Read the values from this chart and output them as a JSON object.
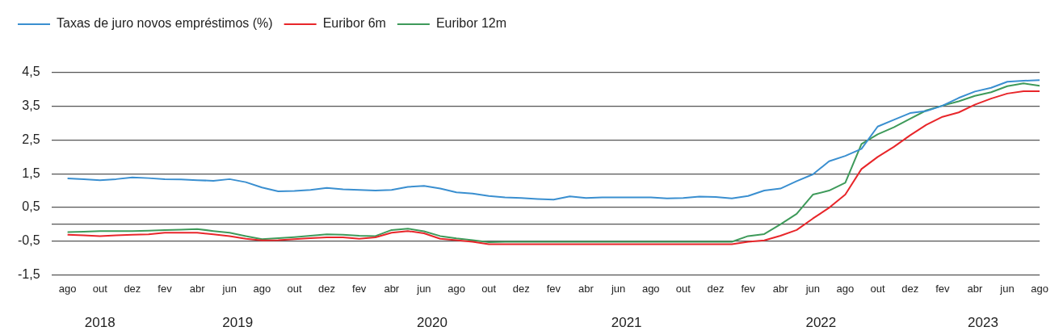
{
  "chart_data": {
    "type": "line",
    "x": [
      "2018-08",
      "2018-09",
      "2018-10",
      "2018-11",
      "2018-12",
      "2019-01",
      "2019-02",
      "2019-03",
      "2019-04",
      "2019-05",
      "2019-06",
      "2019-07",
      "2019-08",
      "2019-09",
      "2019-10",
      "2019-11",
      "2019-12",
      "2020-01",
      "2020-02",
      "2020-03",
      "2020-04",
      "2020-05",
      "2020-06",
      "2020-07",
      "2020-08",
      "2020-09",
      "2020-10",
      "2020-11",
      "2020-12",
      "2021-01",
      "2021-02",
      "2021-03",
      "2021-04",
      "2021-05",
      "2021-06",
      "2021-07",
      "2021-08",
      "2021-09",
      "2021-10",
      "2021-11",
      "2021-12",
      "2022-01",
      "2022-02",
      "2022-03",
      "2022-04",
      "2022-05",
      "2022-06",
      "2022-07",
      "2022-08",
      "2022-09",
      "2022-10",
      "2022-11",
      "2022-12",
      "2023-01",
      "2023-02",
      "2023-03",
      "2023-04",
      "2023-05",
      "2023-06",
      "2023-07",
      "2023-08"
    ],
    "series": [
      {
        "name": "Taxas de juro novos empréstimos (%)",
        "color": "#3a8fd0",
        "values": [
          1.36,
          1.34,
          1.31,
          1.34,
          1.39,
          1.37,
          1.34,
          1.33,
          1.31,
          1.29,
          1.34,
          1.25,
          1.09,
          0.98,
          0.99,
          1.02,
          1.08,
          1.04,
          1.02,
          1.0,
          1.02,
          1.11,
          1.14,
          1.06,
          0.95,
          0.91,
          0.84,
          0.8,
          0.78,
          0.75,
          0.73,
          0.83,
          0.78,
          0.8,
          0.8,
          0.8,
          0.8,
          0.77,
          0.78,
          0.82,
          0.81,
          0.77,
          0.84,
          1.0,
          1.06,
          1.28,
          1.48,
          1.87,
          2.03,
          2.24,
          2.9,
          3.1,
          3.3,
          3.36,
          3.52,
          3.75,
          3.94,
          4.05,
          4.23,
          4.26,
          4.28
        ]
      },
      {
        "name": "Euribor 6m",
        "color": "#e8262a",
        "values": [
          -0.31,
          -0.33,
          -0.35,
          -0.33,
          -0.31,
          -0.3,
          -0.25,
          -0.25,
          -0.25,
          -0.3,
          -0.35,
          -0.43,
          -0.48,
          -0.47,
          -0.44,
          -0.41,
          -0.39,
          -0.39,
          -0.43,
          -0.39,
          -0.25,
          -0.2,
          -0.27,
          -0.43,
          -0.47,
          -0.52,
          -0.59,
          -0.59,
          -0.59,
          -0.59,
          -0.59,
          -0.59,
          -0.59,
          -0.59,
          -0.59,
          -0.59,
          -0.59,
          -0.59,
          -0.59,
          -0.59,
          -0.59,
          -0.59,
          -0.52,
          -0.48,
          -0.34,
          -0.17,
          0.17,
          0.49,
          0.88,
          1.64,
          2.0,
          2.3,
          2.64,
          2.95,
          3.19,
          3.32,
          3.55,
          3.73,
          3.88,
          3.95,
          3.95
        ]
      },
      {
        "name": "Euribor 12m",
        "color": "#3e9a5a",
        "values": [
          -0.23,
          -0.22,
          -0.2,
          -0.2,
          -0.2,
          -0.19,
          -0.17,
          -0.16,
          -0.14,
          -0.2,
          -0.25,
          -0.35,
          -0.44,
          -0.41,
          -0.38,
          -0.34,
          -0.3,
          -0.31,
          -0.34,
          -0.35,
          -0.17,
          -0.13,
          -0.21,
          -0.35,
          -0.42,
          -0.47,
          -0.53,
          -0.52,
          -0.52,
          -0.52,
          -0.52,
          -0.52,
          -0.52,
          -0.52,
          -0.52,
          -0.52,
          -0.52,
          -0.52,
          -0.52,
          -0.52,
          -0.52,
          -0.52,
          -0.35,
          -0.29,
          0.0,
          0.31,
          0.88,
          1.0,
          1.23,
          2.38,
          2.67,
          2.88,
          3.13,
          3.38,
          3.52,
          3.65,
          3.81,
          3.92,
          4.1,
          4.18,
          4.11
        ]
      }
    ],
    "xlim": [
      "2018-07",
      "2023-08"
    ],
    "xticks": [
      {
        "value": "2018-08",
        "label": "ago"
      },
      {
        "value": "2018-10",
        "label": "out"
      },
      {
        "value": "2018-12",
        "label": "dez"
      },
      {
        "value": "2019-02",
        "label": "fev"
      },
      {
        "value": "2019-04",
        "label": "abr"
      },
      {
        "value": "2019-06",
        "label": "jun"
      },
      {
        "value": "2019-08",
        "label": "ago"
      },
      {
        "value": "2019-10",
        "label": "out"
      },
      {
        "value": "2019-12",
        "label": "dez"
      },
      {
        "value": "2020-02",
        "label": "fev"
      },
      {
        "value": "2020-04",
        "label": "abr"
      },
      {
        "value": "2020-06",
        "label": "jun"
      },
      {
        "value": "2020-08",
        "label": "ago"
      },
      {
        "value": "2020-10",
        "label": "out"
      },
      {
        "value": "2020-12",
        "label": "dez"
      },
      {
        "value": "2021-02",
        "label": "fev"
      },
      {
        "value": "2021-04",
        "label": "abr"
      },
      {
        "value": "2021-06",
        "label": "jun"
      },
      {
        "value": "2021-08",
        "label": "ago"
      },
      {
        "value": "2021-10",
        "label": "out"
      },
      {
        "value": "2021-12",
        "label": "dez"
      },
      {
        "value": "2022-02",
        "label": "fev"
      },
      {
        "value": "2022-04",
        "label": "abr"
      },
      {
        "value": "2022-06",
        "label": "jun"
      },
      {
        "value": "2022-08",
        "label": "ago"
      },
      {
        "value": "2022-10",
        "label": "out"
      },
      {
        "value": "2022-12",
        "label": "dez"
      },
      {
        "value": "2023-02",
        "label": "fev"
      },
      {
        "value": "2023-04",
        "label": "abr"
      },
      {
        "value": "2023-06",
        "label": "jun"
      },
      {
        "value": "2023-08",
        "label": "ago"
      }
    ],
    "ylim": [
      -1.5,
      4.5
    ],
    "yticks": [
      {
        "value": -1.5,
        "label": "-1,5"
      },
      {
        "value": -0.5,
        "label": "-0,5"
      },
      {
        "value": 0,
        "label": null
      },
      {
        "value": 0.5,
        "label": "0,5"
      },
      {
        "value": 1.5,
        "label": "1,5"
      },
      {
        "value": 2.5,
        "label": "2,5"
      },
      {
        "value": 3.5,
        "label": "3,5"
      },
      {
        "value": 4.5,
        "label": "4,5"
      }
    ],
    "annotations": [
      "2018",
      "2019",
      "2020",
      "2021",
      "2022",
      "2023"
    ],
    "grid": "y",
    "legend": "top left",
    "marker": "none",
    "line_style": "solid"
  }
}
